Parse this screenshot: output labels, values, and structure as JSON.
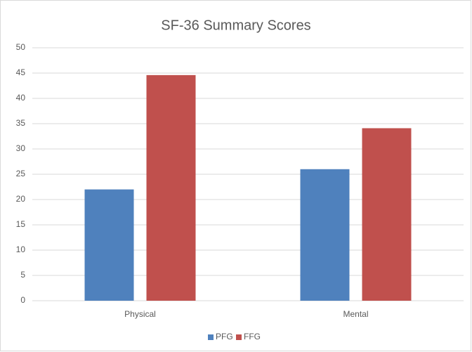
{
  "chart_data": {
    "type": "bar",
    "title": "SF-36 Summary Scores",
    "categories": [
      "Physical",
      "Mental"
    ],
    "series": [
      {
        "name": "PFG",
        "color": "#4f81bd",
        "values": [
          22,
          26
        ]
      },
      {
        "name": "FFG",
        "color": "#c0504d",
        "values": [
          44.6,
          34.1
        ]
      }
    ],
    "ylim": [
      0,
      50
    ],
    "yticks": [
      0,
      5,
      10,
      15,
      20,
      25,
      30,
      35,
      40,
      45,
      50
    ],
    "grid": true,
    "legend": "bottom"
  }
}
